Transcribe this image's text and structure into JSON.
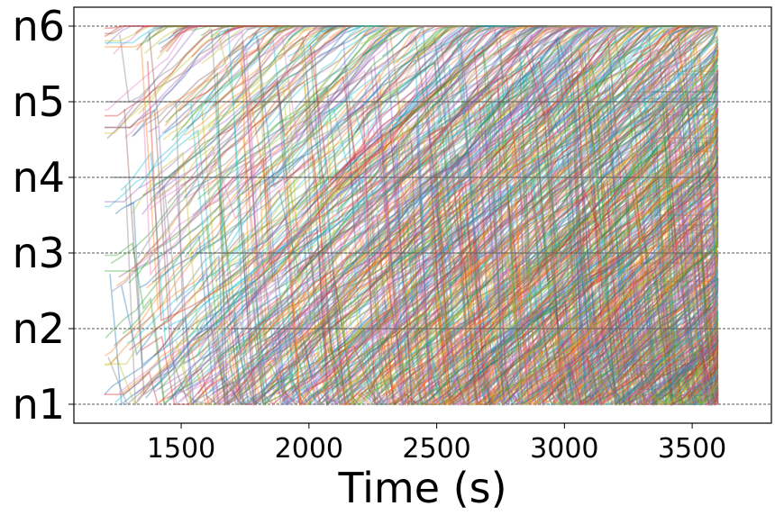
{
  "chart_data": {
    "type": "line",
    "title": "",
    "xlabel": "Time (s)",
    "ylabel": "",
    "xlim": [
      1080,
      3810
    ],
    "ylim": [
      0.75,
      6.25
    ],
    "x_ticks": [
      {
        "value": 1500,
        "label": "1500"
      },
      {
        "value": 2000,
        "label": "2000"
      },
      {
        "value": 2500,
        "label": "2500"
      },
      {
        "value": 3000,
        "label": "3000"
      },
      {
        "value": 3500,
        "label": "3500"
      }
    ],
    "y_ticks": [
      {
        "value": 1,
        "label": "n1"
      },
      {
        "value": 2,
        "label": "n2"
      },
      {
        "value": 3,
        "label": "n3"
      },
      {
        "value": 4,
        "label": "n4"
      },
      {
        "value": 5,
        "label": "n5"
      },
      {
        "value": 6,
        "label": "n6"
      }
    ],
    "grid": "horizontal dashed at node levels",
    "legend": "none",
    "trajectory_time_range": [
      1200,
      3600
    ],
    "trajectory_count_approx": 900,
    "description_of_series": "Many semi-transparent trajectories, each climbing from node n1 toward n6 over time",
    "palette": [
      "#1f77b4",
      "#ff7f0e",
      "#2ca02c",
      "#d62728",
      "#9467bd",
      "#8c564b",
      "#e377c2",
      "#7f7f7f",
      "#bcbd22",
      "#17becf"
    ]
  }
}
